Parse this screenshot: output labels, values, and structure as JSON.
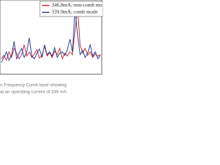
{
  "chart_data": {
    "type": "line",
    "x": [
      0,
      1,
      2,
      3,
      4,
      5,
      6,
      7,
      8,
      9,
      10,
      11,
      12,
      13,
      14,
      15,
      16,
      17,
      18,
      19,
      20,
      21,
      22,
      23,
      24,
      25,
      26,
      27,
      28,
      29,
      30,
      31,
      32,
      33,
      34,
      35,
      36,
      37,
      38,
      39
    ],
    "series": [
      {
        "name": "346.8mA, non-comb mo",
        "color": "#c0283a",
        "values": [
          20,
          25,
          18,
          30,
          22,
          35,
          28,
          20,
          26,
          40,
          24,
          30,
          22,
          27,
          33,
          21,
          25,
          38,
          24,
          29,
          22,
          31,
          26,
          35,
          20,
          28,
          24,
          30,
          26,
          60,
          95,
          40,
          28,
          35,
          25,
          30,
          22,
          27,
          24,
          26
        ]
      },
      {
        "name": "339.9mA, comb mode",
        "color": "#2b3a8c",
        "values": [
          15,
          22,
          30,
          18,
          25,
          45,
          20,
          28,
          35,
          22,
          30,
          50,
          24,
          20,
          28,
          34,
          22,
          40,
          26,
          30,
          24,
          36,
          22,
          28,
          30,
          25,
          33,
          48,
          30,
          90,
          55,
          26,
          32,
          22,
          28,
          40,
          24,
          30,
          20,
          25
        ]
      }
    ],
    "xlim": [
      0,
      39
    ],
    "ylim": [
      0,
      100
    ],
    "caption": [
      "n Frequency Comb laser showing",
      "at an operating current of 339 mA"
    ]
  }
}
